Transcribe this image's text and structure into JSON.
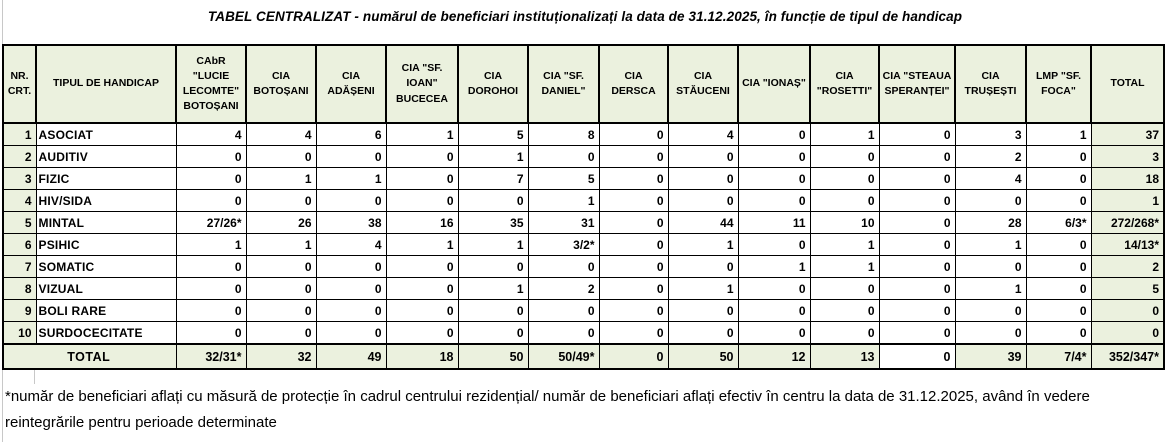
{
  "title": "TABEL CENTRALIZAT - numărul de beneficiari instituționalizați la data de 31.12.2025, în funcție de tipul de handicap",
  "colors": {
    "header_fill": "#ebf1de",
    "border": "#000000",
    "background": "#ffffff"
  },
  "table": {
    "columns": [
      "NR. CRT.",
      "TIPUL DE HANDICAP",
      "CAbR \"LUCIE LECOMTE\" BOTOȘANI",
      "CIA BOTOȘANI",
      "CIA ADĂȘENI",
      "CIA \"SF. IOAN\" BUCECEA",
      "CIA DOROHOI",
      "CIA \"SF. DANIEL\"",
      "CIA DERSCA",
      "CIA STĂUCENI",
      "CIA \"IONAȘ\"",
      "CIA \"ROSETTI\"",
      "CIA \"STEAUA SPERANȚEI\"",
      "CIA TRUȘEȘTI",
      "LMP \"SF. FOCA\"",
      "TOTAL"
    ],
    "rows": [
      {
        "nr": "1",
        "label": "ASOCIAT",
        "values": [
          "4",
          "4",
          "6",
          "1",
          "5",
          "8",
          "0",
          "4",
          "0",
          "1",
          "0",
          "3",
          "1",
          "37"
        ]
      },
      {
        "nr": "2",
        "label": "AUDITIV",
        "values": [
          "0",
          "0",
          "0",
          "0",
          "1",
          "0",
          "0",
          "0",
          "0",
          "0",
          "0",
          "2",
          "0",
          "3"
        ]
      },
      {
        "nr": "3",
        "label": "FIZIC",
        "values": [
          "0",
          "1",
          "1",
          "0",
          "7",
          "5",
          "0",
          "0",
          "0",
          "0",
          "0",
          "4",
          "0",
          "18"
        ]
      },
      {
        "nr": "4",
        "label": "HIV/SIDA",
        "values": [
          "0",
          "0",
          "0",
          "0",
          "0",
          "1",
          "0",
          "0",
          "0",
          "0",
          "0",
          "0",
          "0",
          "1"
        ]
      },
      {
        "nr": "5",
        "label": "MINTAL",
        "values": [
          "27/26*",
          "26",
          "38",
          "16",
          "35",
          "31",
          "0",
          "44",
          "11",
          "10",
          "0",
          "28",
          "6/3*",
          "272/268*"
        ]
      },
      {
        "nr": "6",
        "label": "PSIHIC",
        "values": [
          "1",
          "1",
          "4",
          "1",
          "1",
          "3/2*",
          "0",
          "1",
          "0",
          "1",
          "0",
          "1",
          "0",
          "14/13*"
        ]
      },
      {
        "nr": "7",
        "label": "SOMATIC",
        "values": [
          "0",
          "0",
          "0",
          "0",
          "0",
          "0",
          "0",
          "0",
          "1",
          "1",
          "0",
          "0",
          "0",
          "2"
        ]
      },
      {
        "nr": "8",
        "label": "VIZUAL",
        "values": [
          "0",
          "0",
          "0",
          "0",
          "1",
          "2",
          "0",
          "1",
          "0",
          "0",
          "0",
          "1",
          "0",
          "5"
        ]
      },
      {
        "nr": "9",
        "label": "BOLI RARE",
        "values": [
          "0",
          "0",
          "0",
          "0",
          "0",
          "0",
          "0",
          "0",
          "0",
          "0",
          "0",
          "0",
          "0",
          "0"
        ]
      },
      {
        "nr": "10",
        "label": "SURDOCECITATE",
        "values": [
          "0",
          "0",
          "0",
          "0",
          "0",
          "0",
          "0",
          "0",
          "0",
          "0",
          "0",
          "0",
          "0",
          "0"
        ]
      }
    ],
    "total_row": {
      "label": "TOTAL",
      "values": [
        "32/31*",
        "32",
        "49",
        "18",
        "50",
        "50/49*",
        "0",
        "50",
        "12",
        "13",
        "0",
        "39",
        "7/4*",
        "352/347*"
      ],
      "white_cell_index": 10
    }
  },
  "footnote": "*număr de beneficiari aflați cu măsură de protecție în cadrul centrului rezidențial/ număr de beneficiari aflați efectiv în centru la data de 31.12.2025, având în vedere reintegrările pentru perioade determinate"
}
